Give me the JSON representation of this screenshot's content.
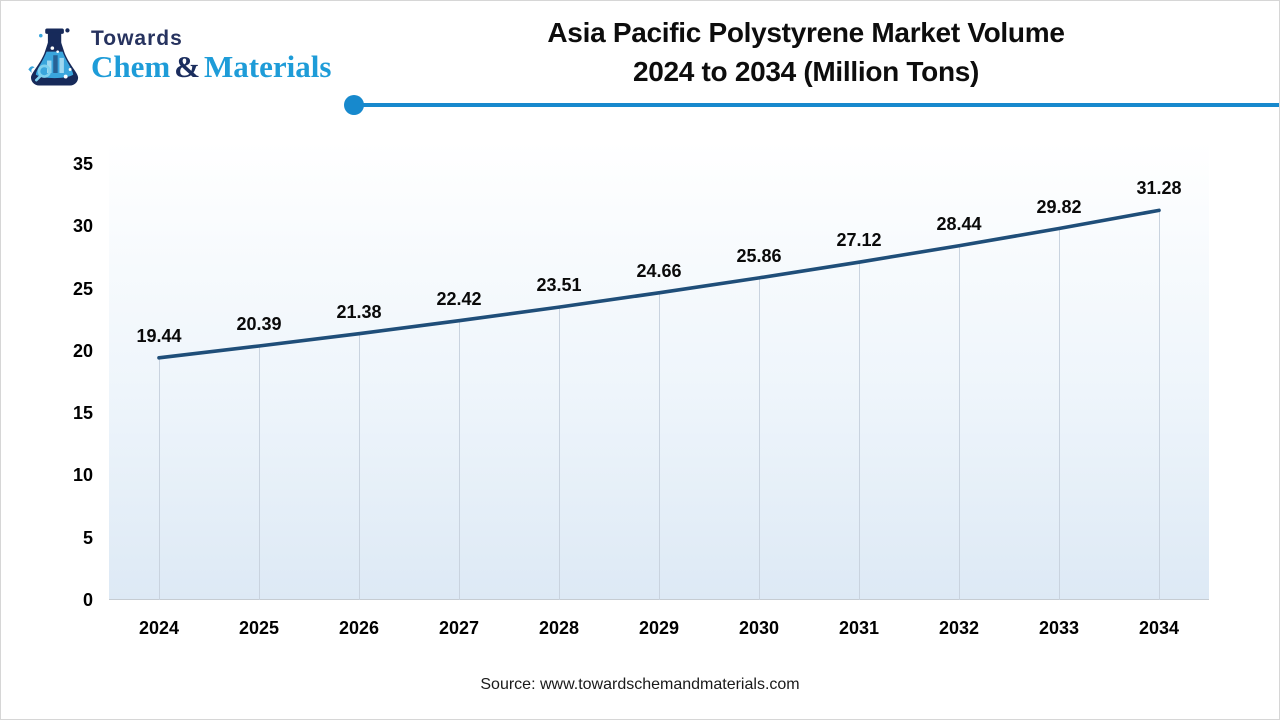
{
  "logo": {
    "brand_top": "Towards",
    "brand_chem": "Chem",
    "brand_amp": "&",
    "brand_materials": "Materials",
    "navy": "#1b2d5e",
    "blue": "#1e9cd8"
  },
  "header": {
    "title_line1": "Asia Pacific Polystyrene Market Volume",
    "title_line2": "2024 to 2034 (Million Tons)",
    "divider_color": "#1789cd"
  },
  "chart_data": {
    "type": "line",
    "title": "Asia Pacific Polystyrene Market Volume 2024 to 2034 (Million Tons)",
    "xlabel": "",
    "ylabel": "",
    "x": [
      2024,
      2025,
      2026,
      2027,
      2028,
      2029,
      2030,
      2031,
      2032,
      2033,
      2034
    ],
    "values": [
      19.44,
      20.39,
      21.38,
      22.42,
      23.51,
      24.66,
      25.86,
      27.12,
      28.44,
      29.82,
      31.28
    ],
    "labels": [
      "19.44",
      "20.39",
      "21.38",
      "22.42",
      "23.51",
      "24.66",
      "25.86",
      "27.12",
      "28.44",
      "29.82",
      "31.28"
    ],
    "ylim": [
      0,
      35
    ],
    "yticks": [
      0,
      5,
      10,
      15,
      20,
      25,
      30,
      35
    ],
    "grid": false,
    "droplines": true,
    "legend_position": "none",
    "line_color": "#1f4e79",
    "dropline_color": "#c9d3df",
    "plot_bg_top": "#ffffff",
    "plot_bg_mid": "#eef5fb",
    "plot_bg_bottom": "#dde9f5"
  },
  "footer": {
    "source": "Source: www.towardschemandmaterials.com"
  }
}
